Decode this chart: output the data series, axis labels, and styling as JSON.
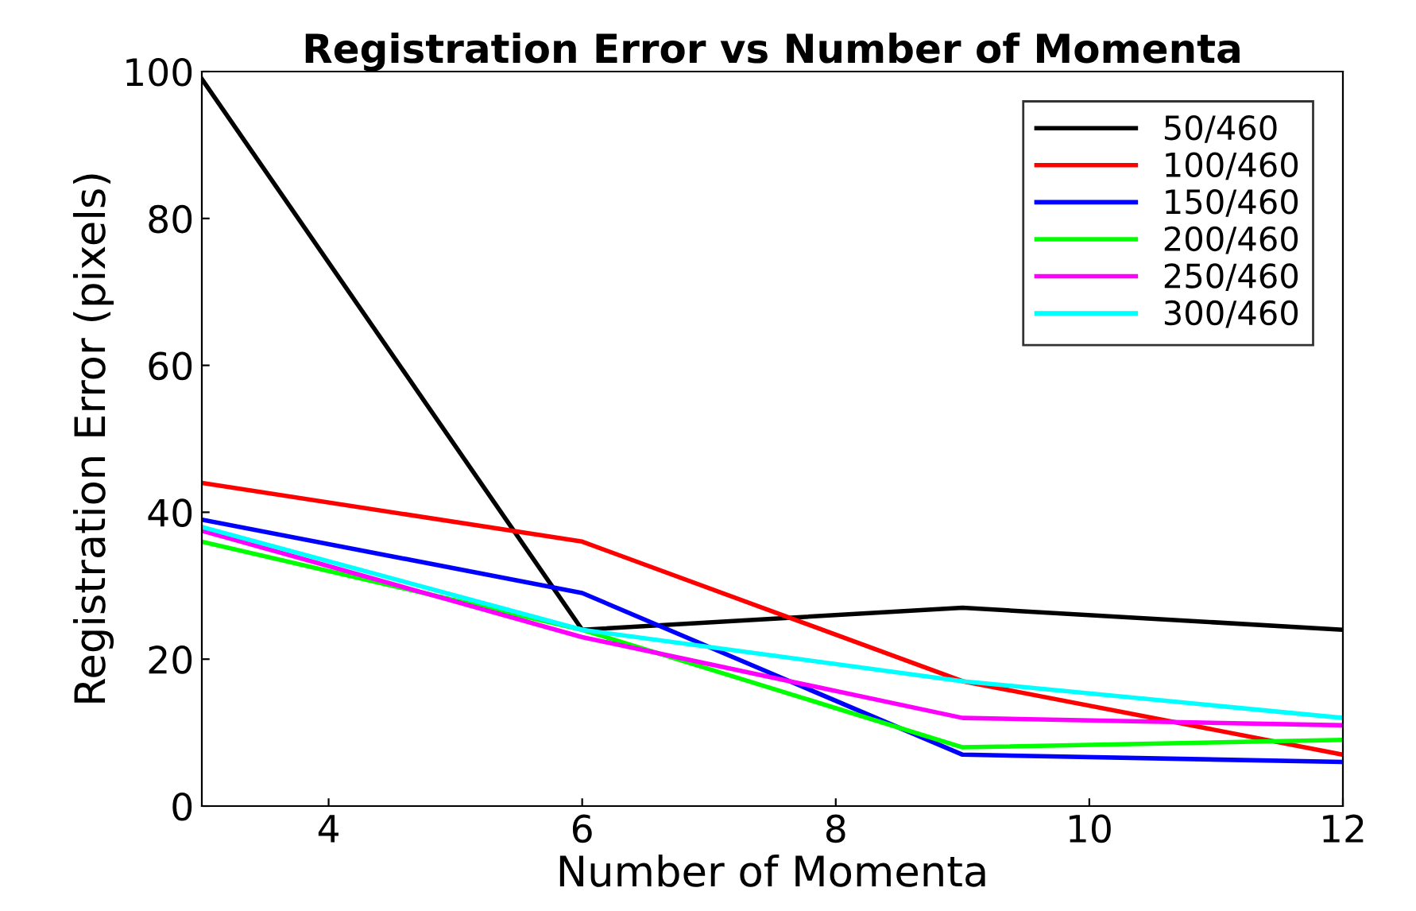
{
  "chart_data": {
    "type": "line",
    "title": "Registration Error vs Number of Momenta",
    "xlabel": "Number of Momenta",
    "ylabel": "Registration Error (pixels)",
    "x": [
      3,
      6,
      9,
      12
    ],
    "series": [
      {
        "name": "50/460",
        "color": "#000000",
        "values": [
          99,
          24,
          27,
          24
        ]
      },
      {
        "name": "100/460",
        "color": "#ff0000",
        "values": [
          44,
          36,
          17,
          7
        ]
      },
      {
        "name": "150/460",
        "color": "#0000ff",
        "values": [
          39,
          29,
          7,
          6
        ]
      },
      {
        "name": "200/460",
        "color": "#00ff00",
        "values": [
          36,
          24,
          8,
          9
        ]
      },
      {
        "name": "250/460",
        "color": "#ff00ff",
        "values": [
          37.5,
          23,
          12,
          11
        ]
      },
      {
        "name": "300/460",
        "color": "#00ffff",
        "values": [
          38,
          24,
          17,
          12
        ]
      }
    ],
    "xlim": [
      3,
      12
    ],
    "xticks": [
      4,
      6,
      8,
      10,
      12
    ],
    "ylim": [
      0,
      100
    ],
    "yticks": [
      0,
      20,
      40,
      60,
      80,
      100
    ],
    "grid": false,
    "legend": "top right",
    "marker": "none",
    "line_style": "solid"
  }
}
